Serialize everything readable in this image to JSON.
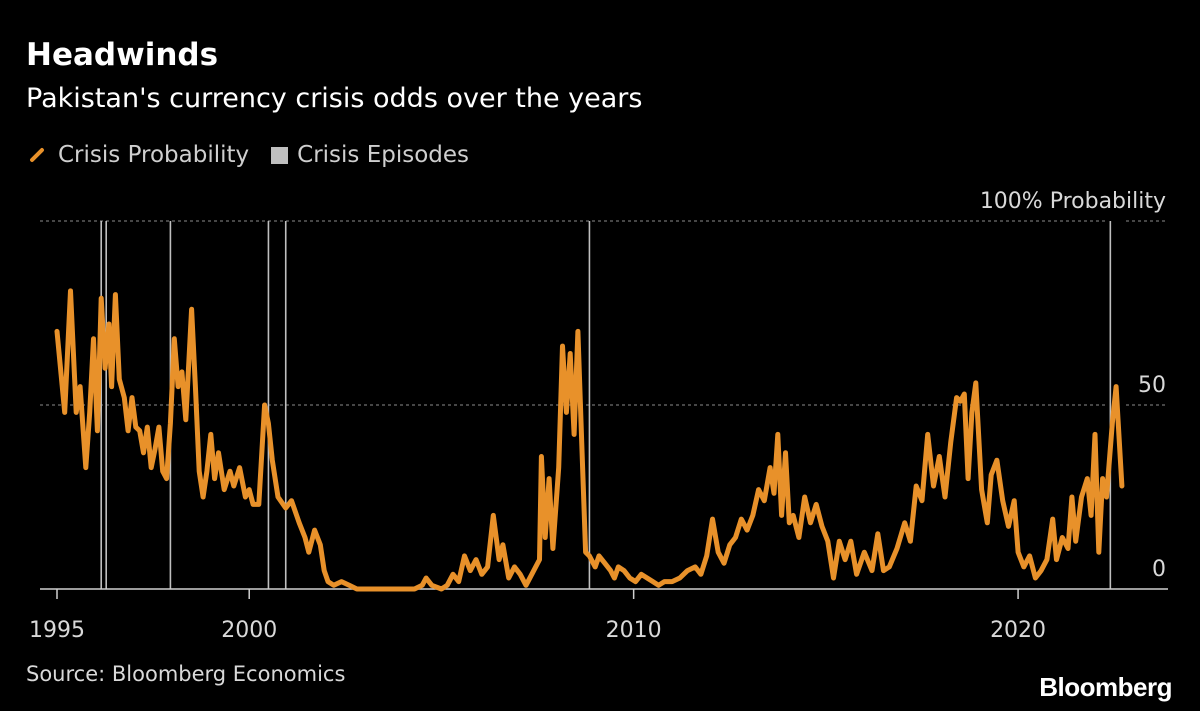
{
  "header": {
    "title": "Headwinds",
    "subtitle": "Pakistan's currency crisis odds over the years"
  },
  "legend": {
    "probability_label": "Crisis Probability",
    "episodes_label": "Crisis Episodes"
  },
  "footer": {
    "source": "Source: Bloomberg Economics",
    "logo": "Bloomberg"
  },
  "colors": {
    "line": "#e8912a",
    "episode": "#bfbfbf",
    "grid": "#8c8c8c",
    "text": "#d9d9d9",
    "background": "#000000"
  },
  "chart_data": {
    "type": "line",
    "xlim": [
      1995,
      2023.9
    ],
    "ylim": [
      0,
      100
    ],
    "x_ticks": [
      {
        "value": 1995,
        "label": "1995"
      },
      {
        "value": 2000,
        "label": "2000"
      },
      {
        "value": 2010,
        "label": "2010"
      },
      {
        "value": 2020,
        "label": "2020"
      }
    ],
    "y_ticks": [
      {
        "value": 100,
        "label": "100% Probability"
      },
      {
        "value": 50,
        "label": "50"
      },
      {
        "value": 0,
        "label": "0"
      }
    ],
    "grid": true,
    "episodes": [
      1996.15,
      1996.28,
      1997.95,
      2000.5,
      2000.95,
      2008.85,
      2022.4
    ],
    "series": [
      {
        "name": "Crisis Probability",
        "points": [
          [
            1995.0,
            70
          ],
          [
            1995.2,
            48
          ],
          [
            1995.35,
            81
          ],
          [
            1995.5,
            48
          ],
          [
            1995.6,
            55
          ],
          [
            1995.75,
            33
          ],
          [
            1995.85,
            48
          ],
          [
            1995.95,
            68
          ],
          [
            1996.05,
            43
          ],
          [
            1996.15,
            79
          ],
          [
            1996.25,
            60
          ],
          [
            1996.35,
            72
          ],
          [
            1996.42,
            55
          ],
          [
            1996.52,
            80
          ],
          [
            1996.62,
            57
          ],
          [
            1996.75,
            52
          ],
          [
            1996.85,
            43
          ],
          [
            1996.95,
            52
          ],
          [
            1997.05,
            44
          ],
          [
            1997.15,
            43
          ],
          [
            1997.25,
            37
          ],
          [
            1997.35,
            44
          ],
          [
            1997.45,
            33
          ],
          [
            1997.55,
            38
          ],
          [
            1997.65,
            44
          ],
          [
            1997.75,
            32
          ],
          [
            1997.85,
            30
          ],
          [
            1997.95,
            45
          ],
          [
            1998.05,
            68
          ],
          [
            1998.15,
            55
          ],
          [
            1998.25,
            59
          ],
          [
            1998.35,
            46
          ],
          [
            1998.5,
            76
          ],
          [
            1998.6,
            55
          ],
          [
            1998.7,
            32
          ],
          [
            1998.8,
            25
          ],
          [
            1998.9,
            32
          ],
          [
            1999.0,
            42
          ],
          [
            1999.1,
            30
          ],
          [
            1999.2,
            37
          ],
          [
            1999.35,
            27
          ],
          [
            1999.5,
            32
          ],
          [
            1999.6,
            28
          ],
          [
            1999.75,
            33
          ],
          [
            1999.9,
            25
          ],
          [
            2000.0,
            27
          ],
          [
            2000.1,
            23
          ],
          [
            2000.25,
            23
          ],
          [
            2000.4,
            50
          ],
          [
            2000.5,
            45
          ],
          [
            2000.6,
            35
          ],
          [
            2000.75,
            25
          ],
          [
            2000.95,
            22
          ],
          [
            2001.1,
            24
          ],
          [
            2001.3,
            18
          ],
          [
            2001.45,
            14
          ],
          [
            2001.55,
            10
          ],
          [
            2001.7,
            16
          ],
          [
            2001.85,
            12
          ],
          [
            2001.95,
            5
          ],
          [
            2002.05,
            2
          ],
          [
            2002.2,
            1
          ],
          [
            2002.4,
            2
          ],
          [
            2002.6,
            1
          ],
          [
            2002.8,
            0
          ],
          [
            2003.5,
            0
          ],
          [
            2004.0,
            0
          ],
          [
            2004.3,
            0
          ],
          [
            2004.5,
            1
          ],
          [
            2004.6,
            3
          ],
          [
            2004.75,
            1
          ],
          [
            2005.0,
            0
          ],
          [
            2005.15,
            1
          ],
          [
            2005.3,
            4
          ],
          [
            2005.45,
            2
          ],
          [
            2005.6,
            9
          ],
          [
            2005.75,
            5
          ],
          [
            2005.9,
            8
          ],
          [
            2006.05,
            4
          ],
          [
            2006.2,
            6
          ],
          [
            2006.35,
            20
          ],
          [
            2006.5,
            8
          ],
          [
            2006.6,
            12
          ],
          [
            2006.75,
            3
          ],
          [
            2006.9,
            6
          ],
          [
            2007.05,
            4
          ],
          [
            2007.2,
            1
          ],
          [
            2007.35,
            4
          ],
          [
            2007.55,
            8
          ],
          [
            2007.6,
            36
          ],
          [
            2007.7,
            14
          ],
          [
            2007.8,
            30
          ],
          [
            2007.9,
            11
          ],
          [
            2008.05,
            33
          ],
          [
            2008.15,
            66
          ],
          [
            2008.25,
            48
          ],
          [
            2008.35,
            64
          ],
          [
            2008.45,
            42
          ],
          [
            2008.55,
            70
          ],
          [
            2008.65,
            40
          ],
          [
            2008.75,
            10
          ],
          [
            2008.85,
            9
          ],
          [
            2009.0,
            6
          ],
          [
            2009.1,
            9
          ],
          [
            2009.25,
            7
          ],
          [
            2009.4,
            5
          ],
          [
            2009.5,
            3
          ],
          [
            2009.6,
            6
          ],
          [
            2009.75,
            5
          ],
          [
            2009.9,
            3
          ],
          [
            2010.05,
            2
          ],
          [
            2010.2,
            4
          ],
          [
            2010.35,
            3
          ],
          [
            2010.5,
            2
          ],
          [
            2010.65,
            1
          ],
          [
            2010.8,
            2
          ],
          [
            2011.0,
            2
          ],
          [
            2011.2,
            3
          ],
          [
            2011.4,
            5
          ],
          [
            2011.6,
            6
          ],
          [
            2011.75,
            4
          ],
          [
            2011.9,
            9
          ],
          [
            2012.05,
            19
          ],
          [
            2012.2,
            10
          ],
          [
            2012.35,
            7
          ],
          [
            2012.5,
            12
          ],
          [
            2012.65,
            14
          ],
          [
            2012.8,
            19
          ],
          [
            2012.95,
            16
          ],
          [
            2013.1,
            20
          ],
          [
            2013.25,
            27
          ],
          [
            2013.4,
            24
          ],
          [
            2013.55,
            33
          ],
          [
            2013.65,
            26
          ],
          [
            2013.75,
            42
          ],
          [
            2013.85,
            20
          ],
          [
            2013.95,
            37
          ],
          [
            2014.05,
            18
          ],
          [
            2014.15,
            20
          ],
          [
            2014.3,
            14
          ],
          [
            2014.45,
            25
          ],
          [
            2014.6,
            18
          ],
          [
            2014.75,
            23
          ],
          [
            2014.9,
            17
          ],
          [
            2015.05,
            13
          ],
          [
            2015.2,
            3
          ],
          [
            2015.35,
            13
          ],
          [
            2015.5,
            8
          ],
          [
            2015.65,
            13
          ],
          [
            2015.8,
            4
          ],
          [
            2016.0,
            10
          ],
          [
            2016.2,
            5
          ],
          [
            2016.35,
            15
          ],
          [
            2016.5,
            5
          ],
          [
            2016.65,
            6
          ],
          [
            2016.85,
            11
          ],
          [
            2017.05,
            18
          ],
          [
            2017.2,
            13
          ],
          [
            2017.35,
            28
          ],
          [
            2017.5,
            24
          ],
          [
            2017.65,
            42
          ],
          [
            2017.8,
            28
          ],
          [
            2017.95,
            36
          ],
          [
            2018.1,
            25
          ],
          [
            2018.25,
            40
          ],
          [
            2018.4,
            52
          ],
          [
            2018.5,
            51
          ],
          [
            2018.6,
            53
          ],
          [
            2018.7,
            30
          ],
          [
            2018.8,
            48
          ],
          [
            2018.9,
            56
          ],
          [
            2019.05,
            27
          ],
          [
            2019.2,
            18
          ],
          [
            2019.3,
            31
          ],
          [
            2019.45,
            35
          ],
          [
            2019.6,
            24
          ],
          [
            2019.75,
            17
          ],
          [
            2019.9,
            24
          ],
          [
            2020.0,
            10
          ],
          [
            2020.15,
            6
          ],
          [
            2020.3,
            9
          ],
          [
            2020.45,
            3
          ],
          [
            2020.6,
            5
          ],
          [
            2020.75,
            8
          ],
          [
            2020.9,
            19
          ],
          [
            2021.0,
            8
          ],
          [
            2021.15,
            14
          ],
          [
            2021.3,
            11
          ],
          [
            2021.4,
            25
          ],
          [
            2021.5,
            13
          ],
          [
            2021.65,
            25
          ],
          [
            2021.8,
            30
          ],
          [
            2021.9,
            20
          ],
          [
            2022.0,
            42
          ],
          [
            2022.1,
            10
          ],
          [
            2022.2,
            30
          ],
          [
            2022.3,
            25
          ],
          [
            2022.45,
            45
          ],
          [
            2022.55,
            55
          ],
          [
            2022.7,
            28
          ]
        ]
      }
    ]
  }
}
